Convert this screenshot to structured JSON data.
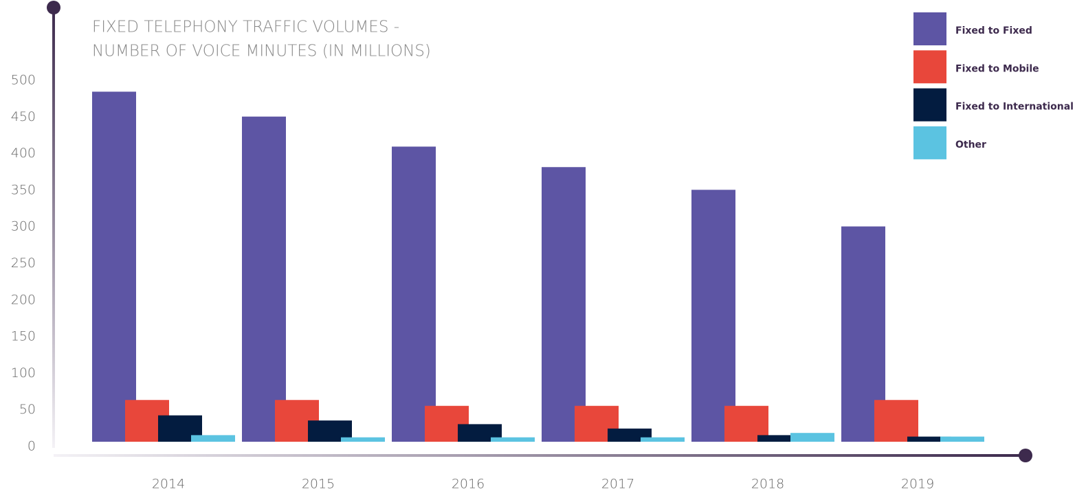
{
  "chart_data": {
    "type": "bar",
    "title": [
      "FIXED TELEPHONY TRAFFIC VOLUMES -",
      "NUMBER OF VOICE MINUTES (IN MILLIONS)"
    ],
    "categories": [
      "2014",
      "2015",
      "2016",
      "2017",
      "2018",
      "2019"
    ],
    "series": [
      {
        "name": "Fixed to Fixed",
        "color": "#5d55a4",
        "values": [
          478,
          444,
          403,
          375,
          344,
          294
        ]
      },
      {
        "name": "Fixed to Mobile",
        "color": "#e8473b",
        "values": [
          57,
          57,
          49,
          49,
          49,
          57
        ]
      },
      {
        "name": "Fixed to International",
        "color": "#031c40",
        "values": [
          36,
          29,
          24,
          18,
          9,
          7
        ]
      },
      {
        "name": "Other",
        "color": "#5bc3e1",
        "values": [
          9,
          6,
          6,
          6,
          12,
          7
        ]
      }
    ],
    "ylim": [
      0,
      500
    ],
    "yticks": [
      0,
      50,
      100,
      150,
      200,
      250,
      300,
      350,
      400,
      450,
      500
    ]
  }
}
